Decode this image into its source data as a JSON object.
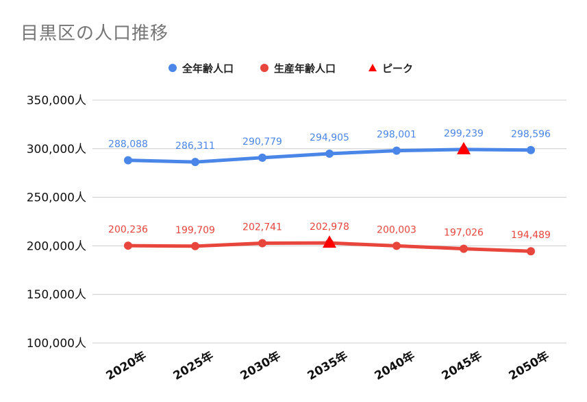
{
  "chart_data": {
    "type": "line",
    "title": "目黒区の人口推移",
    "categories": [
      "2020年",
      "2025年",
      "2030年",
      "2035年",
      "2040年",
      "2045年",
      "2050年"
    ],
    "series": [
      {
        "name": "全年齢人口",
        "color": "#4a86e8",
        "values": [
          288088,
          286311,
          290779,
          294905,
          298001,
          299239,
          298596
        ],
        "labels": [
          "288,088",
          "286,311",
          "290,779",
          "294,905",
          "298,001",
          "299,239",
          "298,596"
        ]
      },
      {
        "name": "生産年齢人口",
        "color": "#e8453c",
        "values": [
          200236,
          199709,
          202741,
          202978,
          200003,
          197026,
          194489
        ],
        "labels": [
          "200,236",
          "199,709",
          "202,741",
          "202,978",
          "200,003",
          "197,026",
          "194,489"
        ]
      }
    ],
    "peak": {
      "name": "ピーク",
      "color": "#ff0000",
      "points": [
        {
          "series": 0,
          "category": "2045年"
        },
        {
          "series": 1,
          "category": "2035年"
        }
      ]
    },
    "yticks": [
      {
        "value": 100000,
        "label": "100,000人"
      },
      {
        "value": 150000,
        "label": "150,000人"
      },
      {
        "value": 200000,
        "label": "200,000人"
      },
      {
        "value": 250000,
        "label": "250,000人"
      },
      {
        "value": 300000,
        "label": "300,000人"
      },
      {
        "value": 350000,
        "label": "350,000人"
      }
    ],
    "ylim": [
      100000,
      350000
    ],
    "xlabel": "",
    "ylabel": "",
    "grid": true,
    "legend_position": "top"
  }
}
